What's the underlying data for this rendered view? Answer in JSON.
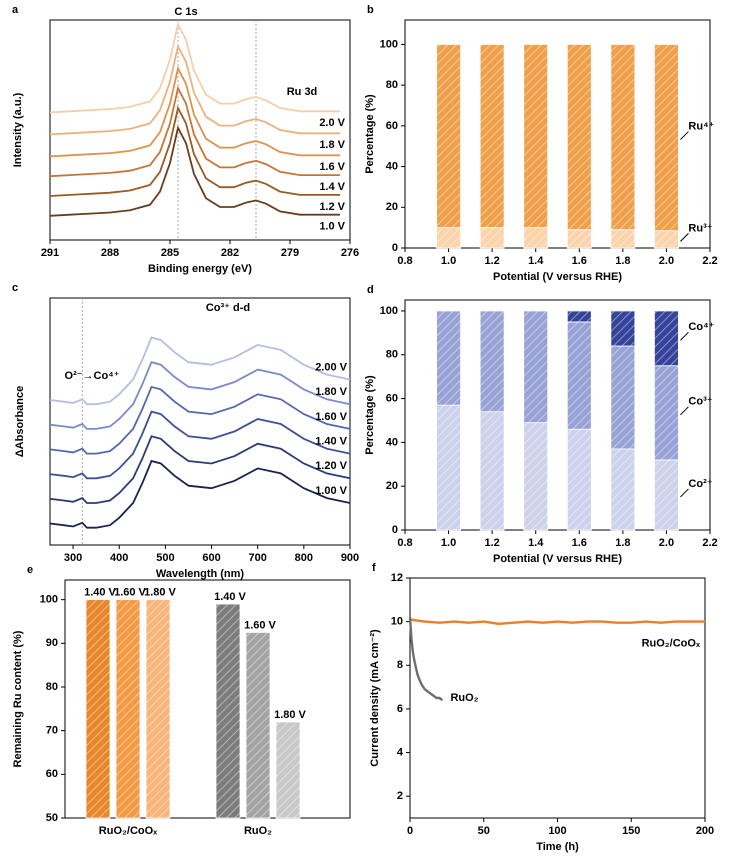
{
  "chart_data": [
    {
      "type": "line",
      "panel": "a",
      "x_label": "Binding energy (eV)",
      "y_label": "Intensity (a.u.)",
      "annotations": [
        "C 1s",
        "Ru 3d"
      ],
      "reference_lines": [
        284.6,
        280.7
      ],
      "xlim": [
        291,
        276
      ],
      "xticks": [
        291,
        288,
        285,
        282,
        279,
        276
      ],
      "ylim": [
        0,
        100
      ],
      "x": [
        291,
        290,
        289,
        288,
        287,
        286,
        285.5,
        285,
        284.6,
        284.2,
        283.8,
        283.2,
        282.5,
        281.8,
        281.2,
        280.7,
        280.2,
        279.5,
        278.5,
        277.5,
        276.5
      ],
      "series": [
        {
          "name": "1.0 V",
          "color": "#6b3d1a",
          "values": [
            11,
            11.5,
            12,
            12.5,
            13.5,
            16,
            22,
            35,
            51,
            44,
            30,
            19,
            15,
            15,
            17,
            18,
            16.5,
            13,
            11.5,
            11.5,
            11.5
          ]
        },
        {
          "name": "1.2 V",
          "color": "#9b5a25",
          "values": [
            20,
            20.5,
            21,
            21.5,
            22.5,
            25,
            31,
            44,
            60,
            53,
            39,
            28,
            24,
            24,
            26,
            27,
            25.5,
            22,
            20.5,
            20.5,
            20.5
          ]
        },
        {
          "name": "1.4 V",
          "color": "#c87533",
          "values": [
            29,
            29.5,
            30,
            30.5,
            31.5,
            34,
            40,
            53,
            69,
            62,
            48,
            37,
            33,
            33,
            35,
            36,
            34.5,
            31,
            29.5,
            29.5,
            29.5
          ]
        },
        {
          "name": "1.6 V",
          "color": "#e0914a",
          "values": [
            38,
            38.5,
            39,
            39.5,
            40.5,
            43,
            49,
            62,
            78,
            71,
            57,
            46,
            42,
            42,
            44,
            45,
            43.5,
            40,
            38.5,
            38.5,
            38.5
          ]
        },
        {
          "name": "1.8 V",
          "color": "#eeb07c",
          "values": [
            48,
            48.5,
            49,
            49.5,
            50.5,
            53,
            59,
            72,
            88,
            81,
            67,
            56,
            52,
            52,
            54,
            55,
            53.5,
            50,
            48.5,
            48.5,
            48.5
          ]
        },
        {
          "name": "2.0 V",
          "color": "#f5cfa9",
          "values": [
            58,
            58.5,
            59,
            59.5,
            60.5,
            63,
            69,
            82,
            98,
            91,
            77,
            66,
            62,
            62,
            64,
            65,
            63.5,
            60,
            58.5,
            58.5,
            58.5
          ]
        }
      ]
    },
    {
      "type": "bar",
      "stacked": true,
      "panel": "b",
      "x_label": "Potential (V versus RHE)",
      "y_label": "Percentage (%)",
      "xlim": [
        0.8,
        2.2
      ],
      "xticks": [
        0.8,
        {
          "value": 1,
          "label": "1.0"
        },
        1.2,
        1.4,
        1.6,
        1.8,
        {
          "value": 2,
          "label": "2.0"
        },
        2.2
      ],
      "ylim": [
        0,
        112
      ],
      "yticks": [
        0,
        20,
        40,
        60,
        80,
        100
      ],
      "x": [
        1.0,
        1.2,
        1.4,
        1.6,
        1.8,
        2.0
      ],
      "series": [
        {
          "name": "Ru³⁺",
          "color": "#fbd4ac",
          "values": [
            10,
            10,
            10,
            9,
            9,
            8.5
          ]
        },
        {
          "name": "Ru⁴⁺",
          "color": "#f0a04a",
          "values": [
            90,
            90,
            90,
            91,
            91,
            91.5
          ]
        }
      ]
    },
    {
      "type": "line",
      "panel": "c",
      "x_label": "Wavelength (nm)",
      "y_label": "ΔAbsorbance",
      "annotations": [
        "O²⁻→Co⁴⁺",
        "Co³⁺ d-d"
      ],
      "reference_lines": [
        320
      ],
      "xlim": [
        250,
        900
      ],
      "xticks": [
        300,
        400,
        500,
        600,
        700,
        800,
        900
      ],
      "ylim": [
        0,
        100
      ],
      "x": [
        250,
        280,
        300,
        320,
        330,
        350,
        380,
        400,
        430,
        450,
        470,
        490,
        520,
        550,
        600,
        650,
        700,
        750,
        800,
        850,
        900
      ],
      "series": [
        {
          "name": "1.00 V",
          "color": "#1a2350",
          "values": [
            8.7,
            8,
            7.5,
            9,
            7,
            7,
            8,
            11,
            17,
            25,
            34,
            33,
            28,
            24,
            23,
            26,
            31,
            29,
            23,
            19,
            17
          ]
        },
        {
          "name": "1.20 V",
          "color": "#2b3a7a",
          "values": [
            18.7,
            18,
            17.5,
            19,
            17,
            17,
            18,
            21,
            27,
            35,
            44,
            43,
            38,
            34,
            33,
            36,
            41,
            39,
            33,
            29,
            27
          ]
        },
        {
          "name": "1.40 V",
          "color": "#3d4f9a",
          "values": [
            28.7,
            28,
            27.5,
            29,
            27,
            27,
            28,
            31,
            37,
            45,
            54,
            53,
            48,
            44,
            43,
            46,
            51,
            49,
            43,
            39,
            37
          ]
        },
        {
          "name": "1.60 V",
          "color": "#5467b5",
          "values": [
            38.7,
            38,
            37.5,
            39,
            37,
            37,
            38,
            41,
            47,
            55,
            64,
            63,
            58,
            54,
            53,
            56,
            61,
            59,
            53,
            49,
            47
          ]
        },
        {
          "name": "1.80 V",
          "color": "#7b8acb",
          "values": [
            48.7,
            48,
            47.5,
            49,
            47,
            47,
            48,
            51,
            57,
            65,
            74,
            73,
            68,
            64,
            63,
            66,
            71,
            69,
            63,
            59,
            57
          ]
        },
        {
          "name": "2.00 V",
          "color": "#b3bde5",
          "values": [
            58.7,
            58,
            57.5,
            59,
            57,
            57,
            58,
            61,
            67,
            75,
            84,
            83,
            78,
            74,
            73,
            76,
            81,
            79,
            73,
            69,
            67
          ]
        }
      ]
    },
    {
      "type": "bar",
      "stacked": true,
      "panel": "d",
      "x_label": "Potential (V versus RHE)",
      "y_label": "Percentage (%)",
      "xlim": [
        0.8,
        2.2
      ],
      "xticks": [
        0.8,
        {
          "value": 1,
          "label": "1.0"
        },
        1.2,
        1.4,
        1.6,
        1.8,
        {
          "value": 2,
          "label": "2.0"
        },
        2.2
      ],
      "ylim": [
        0,
        105
      ],
      "yticks": [
        0,
        20,
        40,
        60,
        80,
        100
      ],
      "x": [
        1.0,
        1.2,
        1.4,
        1.6,
        1.8,
        2.0
      ],
      "series": [
        {
          "name": "Co²⁺",
          "color": "#cdd2ec",
          "values": [
            57,
            54,
            49,
            46,
            37,
            32
          ]
        },
        {
          "name": "Co³⁺",
          "color": "#98a2d6",
          "values": [
            43,
            46,
            51,
            49,
            47,
            43
          ]
        },
        {
          "name": "Co⁴⁺",
          "color": "#34449b",
          "values": [
            0,
            0,
            0,
            5,
            16,
            25
          ]
        }
      ]
    },
    {
      "type": "bar",
      "panel": "e",
      "y_label": "Remaining Ru content (%)",
      "categories": [
        "RuO₂/CoOₓ",
        "RuO₂"
      ],
      "ylim": [
        50,
        104.5
      ],
      "yticks": [
        50,
        60,
        70,
        80,
        90,
        100
      ],
      "series": [
        {
          "name": "1.40 V",
          "colors": [
            "#e8862a",
            "#7c7c7c"
          ],
          "values": [
            100,
            99
          ]
        },
        {
          "name": "1.60 V",
          "colors": [
            "#f39a45",
            "#a3a3a3"
          ],
          "values": [
            100,
            92.5
          ]
        },
        {
          "name": "1.80 V",
          "colors": [
            "#f7b57a",
            "#c8c8c8"
          ],
          "values": [
            100,
            72
          ]
        }
      ]
    },
    {
      "type": "line",
      "panel": "f",
      "x_label": "Time (h)",
      "y_label": "Current density (mA cm⁻²)",
      "xlim": [
        0,
        200
      ],
      "xticks": [
        0,
        50,
        100,
        150,
        200
      ],
      "ylim": [
        1,
        12
      ],
      "yticks": [
        2,
        4,
        6,
        8,
        10,
        12
      ],
      "series": [
        {
          "name": "RuO₂/CoOₓ",
          "color": "#ee7d2b",
          "x": [
            0,
            10,
            20,
            30,
            40,
            50,
            60,
            70,
            80,
            90,
            100,
            110,
            120,
            130,
            140,
            150,
            160,
            170,
            180,
            190,
            200
          ],
          "values": [
            10.1,
            10,
            9.95,
            10,
            9.95,
            10,
            9.9,
            9.95,
            10,
            9.95,
            10,
            9.95,
            10,
            10,
            9.95,
            9.95,
            10,
            9.95,
            10,
            10,
            10
          ]
        },
        {
          "name": "RuO₂",
          "color": "#6e6e6e",
          "x": [
            0,
            1,
            2,
            3,
            4,
            5,
            6,
            8,
            10,
            12,
            14,
            16,
            18,
            20,
            22
          ],
          "values": [
            10.2,
            9.2,
            8.6,
            8.2,
            7.9,
            7.6,
            7.4,
            7.1,
            6.9,
            6.8,
            6.7,
            6.6,
            6.5,
            6.5,
            6.4
          ]
        }
      ]
    }
  ]
}
